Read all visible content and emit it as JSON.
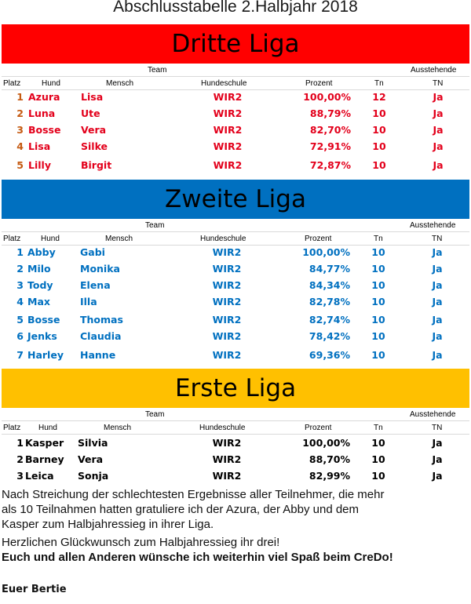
{
  "title": "Abschlusstabelle 2.Halbjahr 2018",
  "headers": {
    "team": "Team",
    "ausstehende": "Ausstehende",
    "platz": "Platz",
    "hund": "Hund",
    "mensch": "Mensch",
    "hundeschule": "Hundeschule",
    "prozent": "Prozent",
    "tn": "Tn",
    "tn_upper": "TN"
  },
  "colors": {
    "dritte_band": "#ff0000",
    "dritte_text": "#e3001b",
    "zweite_band": "#0070c0",
    "zweite_text": "#0070c0",
    "erste_band": "#ffc000",
    "erste_text": "#000000"
  },
  "leagues": [
    {
      "name": "Dritte Liga",
      "rows": [
        {
          "platz": "1",
          "hund": "Azura",
          "mensch": "Lisa",
          "schule": "WIR2",
          "prozent": "100,00%",
          "tn": "12",
          "aus": "Ja"
        },
        {
          "platz": "2",
          "hund": "Luna",
          "mensch": "Ute",
          "schule": "WIR2",
          "prozent": "88,79%",
          "tn": "10",
          "aus": "Ja"
        },
        {
          "platz": "3",
          "hund": "Bosse",
          "mensch": "Vera",
          "schule": "WIR2",
          "prozent": "82,70%",
          "tn": "10",
          "aus": "Ja"
        },
        {
          "platz": "4",
          "hund": "Lisa",
          "mensch": "Silke",
          "schule": "WIR2",
          "prozent": "72,91%",
          "tn": "10",
          "aus": "Ja"
        },
        {
          "platz": "5",
          "hund": "Lilly",
          "mensch": "Birgit",
          "schule": "WIR2",
          "prozent": "72,87%",
          "tn": "10",
          "aus": "Ja"
        }
      ]
    },
    {
      "name": "Zweite Liga",
      "rows": [
        {
          "platz": "1",
          "hund": "Abby",
          "mensch": "Gabi",
          "schule": "WIR2",
          "prozent": "100,00%",
          "tn": "10",
          "aus": "Ja"
        },
        {
          "platz": "2",
          "hund": "Milo",
          "mensch": "Monika",
          "schule": "WIR2",
          "prozent": "84,77%",
          "tn": "10",
          "aus": "Ja"
        },
        {
          "platz": "3",
          "hund": "Tody",
          "mensch": "Elena",
          "schule": "WIR2",
          "prozent": "84,34%",
          "tn": "10",
          "aus": "Ja"
        },
        {
          "platz": "4",
          "hund": "Max",
          "mensch": "Illa",
          "schule": "WIR2",
          "prozent": "82,78%",
          "tn": "10",
          "aus": "Ja"
        },
        {
          "platz": "5",
          "hund": "Bosse",
          "mensch": "Thomas",
          "schule": "WIR2",
          "prozent": "82,74%",
          "tn": "10",
          "aus": "Ja"
        },
        {
          "platz": "6",
          "hund": "Jenks",
          "mensch": "Claudia",
          "schule": "WIR2",
          "prozent": "78,42%",
          "tn": "10",
          "aus": "Ja"
        },
        {
          "platz": "7",
          "hund": "Harley",
          "mensch": "Hanne",
          "schule": "WIR2",
          "prozent": "69,36%",
          "tn": "10",
          "aus": "Ja"
        }
      ]
    },
    {
      "name": "Erste Liga",
      "rows": [
        {
          "platz": "1",
          "hund": "Kasper",
          "mensch": "Silvia",
          "schule": "WIR2",
          "prozent": "100,00%",
          "tn": "10",
          "aus": "Ja"
        },
        {
          "platz": "2",
          "hund": "Barney",
          "mensch": "Vera",
          "schule": "WIR2",
          "prozent": "88,70%",
          "tn": "10",
          "aus": "Ja"
        },
        {
          "platz": "3",
          "hund": "Leica",
          "mensch": "Sonja",
          "schule": "WIR2",
          "prozent": "82,99%",
          "tn": "10",
          "aus": "Ja"
        }
      ]
    }
  ],
  "text": {
    "line1": "Nach Streichung der schlechtesten Ergebnisse aller Teilnehmer, die mehr",
    "line2": "als 10 Teilnahmen hatten gratuliere ich der Azura, der Abby und dem",
    "line3": "Kasper zum Halbjahressieg in ihrer Liga.",
    "line4": "Herzlichen Glückwunsch zum Halbjahressieg  ihr drei!",
    "line5": "Euch und allen Anderen wünsche ich weiterhin viel Spaß beim CreDo!",
    "signature": "Euer Bertie"
  }
}
